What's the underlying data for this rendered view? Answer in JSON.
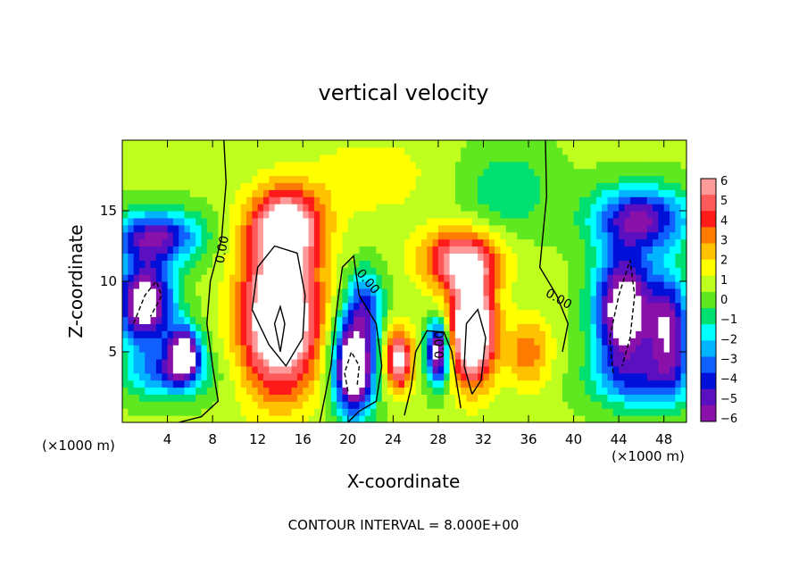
{
  "chart_data": {
    "type": "heatmap",
    "title": "vertical velocity",
    "xlabel": "X-coordinate",
    "ylabel": "Z-coordinate",
    "x_unit_label": "(×1000 m)",
    "x_unit_label_right": "(×1000 m)",
    "footer": "CONTOUR INTERVAL = 8.000E+00",
    "xlim": [
      0,
      50
    ],
    "ylim": [
      0,
      20
    ],
    "x_ticks": [
      4,
      8,
      12,
      16,
      20,
      24,
      28,
      32,
      36,
      40,
      44,
      48
    ],
    "y_ticks": [
      5,
      10,
      15
    ],
    "colorbar": {
      "ticks": [
        6,
        5,
        4,
        3,
        2,
        1,
        0,
        -1,
        -2,
        -3,
        -4,
        -5,
        -6
      ],
      "colors": [
        "#ff9a9a",
        "#ff5a5a",
        "#ff1a1a",
        "#ff7a00",
        "#ffc200",
        "#ffff00",
        "#bfff1f",
        "#5fe81f",
        "#00e070",
        "#00ffff",
        "#00b4ff",
        "#1060ff",
        "#0010d8",
        "#5a10c0",
        "#8a10aa"
      ]
    },
    "contour_labels": [
      "0.00",
      "0.00",
      "0.00",
      "0.00"
    ],
    "features": [
      {
        "kind": "updraft",
        "x": 14,
        "z": 7,
        "peak": 8
      },
      {
        "kind": "updraft",
        "x": 31,
        "z": 6.5,
        "peak": 8
      },
      {
        "kind": "updraft",
        "x": 24.5,
        "z": 4.5,
        "peak": 6
      },
      {
        "kind": "downdraft",
        "x": 2,
        "z": 8.5,
        "peak": -8
      },
      {
        "kind": "downdraft",
        "x": 5.5,
        "z": 5,
        "peak": -8
      },
      {
        "kind": "downdraft",
        "x": 20.5,
        "z": 3.7,
        "peak": -8
      },
      {
        "kind": "downdraft",
        "x": 28,
        "z": 5,
        "peak": -8
      },
      {
        "kind": "downdraft",
        "x": 45,
        "z": 8,
        "peak": -8
      },
      {
        "kind": "band",
        "x": 3,
        "z": 13.5,
        "peak": -5
      },
      {
        "kind": "band",
        "x": 46,
        "z": 14.5,
        "peak": -5
      }
    ]
  }
}
